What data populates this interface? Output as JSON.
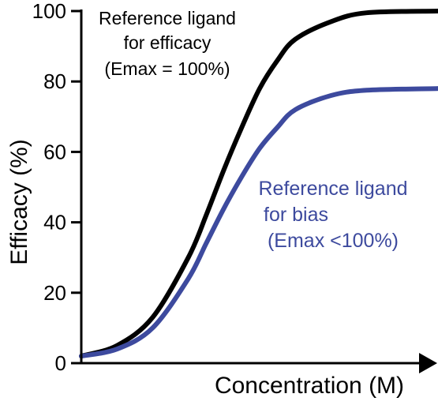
{
  "chart_data": {
    "type": "line",
    "xlabel": "Concentration (M)",
    "ylabel": "Efficacy (%)",
    "ylim": [
      0,
      100
    ],
    "yticks": [
      "0",
      "20",
      "40",
      "60",
      "80",
      "100"
    ],
    "x_scale": "log",
    "grid": false,
    "series": [
      {
        "annotation": [
          "Reference ligand",
          "for efficacy",
          "(Emax = 100%)"
        ],
        "color": "#000000",
        "emax": 100,
        "points": [
          [
            0,
            2
          ],
          [
            10,
            5
          ],
          [
            20,
            13
          ],
          [
            30,
            30
          ],
          [
            35,
            42
          ],
          [
            40,
            55
          ],
          [
            45,
            67
          ],
          [
            50,
            78
          ],
          [
            55,
            86
          ],
          [
            60,
            92
          ],
          [
            70,
            97
          ],
          [
            80,
            99.5
          ],
          [
            100,
            100
          ]
        ]
      },
      {
        "annotation": [
          "Reference ligand",
          "for bias",
          "(Emax <100%)"
        ],
        "color": "#3d4a9e",
        "emax": 78,
        "points": [
          [
            0,
            2
          ],
          [
            10,
            4
          ],
          [
            20,
            10
          ],
          [
            30,
            24
          ],
          [
            35,
            34
          ],
          [
            40,
            44
          ],
          [
            45,
            53
          ],
          [
            50,
            61
          ],
          [
            55,
            67
          ],
          [
            60,
            72
          ],
          [
            70,
            76
          ],
          [
            80,
            77.5
          ],
          [
            100,
            78
          ]
        ]
      }
    ]
  }
}
